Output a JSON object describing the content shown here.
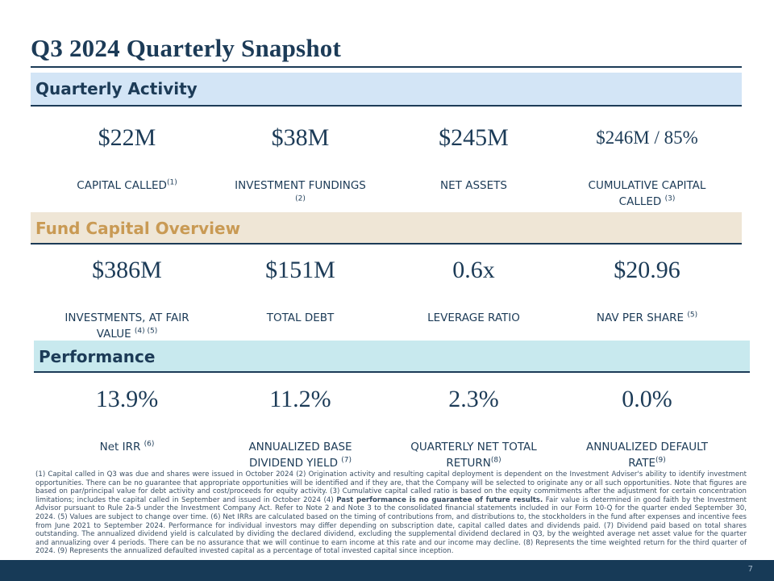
{
  "title": "Q3 2024 Quarterly Snapshot",
  "sections": {
    "quarterly_activity": {
      "heading": "Quarterly Activity",
      "metrics": [
        {
          "value": "$22M",
          "label": "CAPITAL CALLED",
          "note": "(1)"
        },
        {
          "value": "$38M",
          "label": "INVESTMENT FUNDINGS ",
          "note": "(2)"
        },
        {
          "value": "$245M",
          "label": "NET ASSETS",
          "note": ""
        },
        {
          "value": "$246M / 85%",
          "label": "CUMULATIVE CAPITAL CALLED ",
          "note": "(3)"
        }
      ]
    },
    "fund_capital": {
      "heading": "Fund Capital Overview",
      "metrics": [
        {
          "value": "$386M",
          "label": "INVESTMENTS, AT FAIR VALUE ",
          "note": "(4) (5)"
        },
        {
          "value": "$151M",
          "label": "TOTAL DEBT",
          "note": ""
        },
        {
          "value": "0.6x",
          "label": "LEVERAGE RATIO",
          "note": ""
        },
        {
          "value": "$20.96",
          "label": "NAV PER SHARE ",
          "note": "(5)"
        }
      ]
    },
    "performance": {
      "heading": "Performance",
      "metrics": [
        {
          "value": "13.9%",
          "label": "Net IRR ",
          "note": "(6)"
        },
        {
          "value": "11.2%",
          "label": "ANNUALIZED BASE DIVIDEND YIELD ",
          "note": "(7)"
        },
        {
          "value": "2.3%",
          "label": "QUARTERLY NET TOTAL RETURN",
          "note": "(8)"
        },
        {
          "value": "0.0%",
          "label": "ANNUALIZED DEFAULT RATE",
          "note": "(9)"
        }
      ]
    }
  },
  "footnotes": {
    "part1": "(1) Capital called in Q3 was due and shares were issued in October 2024 (2) Origination activity and resulting capital deployment is dependent on the Investment Adviser's ability to identify investment opportunities. There can be no guarantee that appropriate opportunities will be identified and if they are, that the Company will be selected to originate any or all such opportunities. Note that figures are based on par/principal value for debt activity and cost/proceeds for equity activity. (3) Cumulative capital called ratio is based on the equity commitments after the adjustment for certain concentration limitations; includes the capital called in September and issued in October 2024 (4) ",
    "bold": "Past performance is no guarantee of future results.",
    "part2": " Fair value is determined in good faith by the Investment Advisor pursuant to Rule 2a-5 under the Investment Company Act. Refer to Note 2 and Note 3 to the consolidated financial statements included in our Form 10-Q for the quarter ended September 30, 2024. (5) Values are subject to change over time. (6) Net IRRs are calculated based on the timing of contributions from, and distributions to, the stockholders in the fund after expenses and incentive fees from June 2021 to September 2024. Performance for individual investors may differ depending on subscription date, capital called dates and dividends paid. (7) Dividend paid based on total shares outstanding. The annualized dividend yield is calculated by dividing the declared dividend, excluding the supplemental dividend declared in Q3, by the weighted average net asset value for the quarter and annualizing over 4 periods. There can be no assurance that we will continue to earn income at this rate and our income may decline. (8) Represents the time weighted return for the third quarter of 2024. (9) Represents the annualized defaulted invested capital as a percentage of total invested capital since inception."
  },
  "page_number": "7",
  "colors": {
    "navy": "#1c3b57",
    "activity_band": "#d3e5f6",
    "fund_band": "#efe6d6",
    "fund_heading": "#c99a54",
    "performance_band": "#c8e9ee",
    "footer": "#173a57"
  }
}
